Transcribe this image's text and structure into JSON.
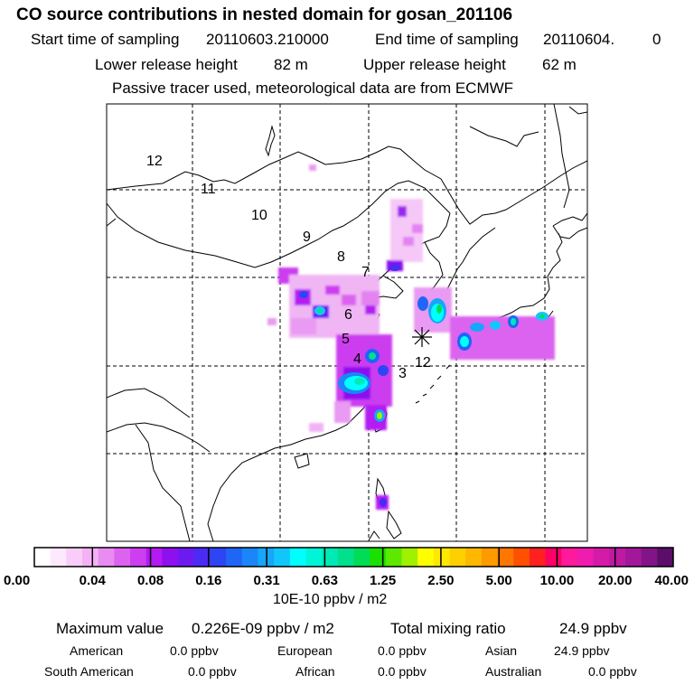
{
  "header": {
    "title": "CO  source contributions in nested domain for gosan_201106",
    "start_label": "Start time of sampling",
    "start_value": "20110603.210000",
    "end_label": "End time of sampling",
    "end_value": "20110604.",
    "end_value_tail": "0",
    "lower_label": "Lower release height",
    "lower_value": "82 m",
    "upper_label": "Upper release height",
    "upper_value": "62 m",
    "note": "Passive tracer used, meteorological data are from ECMWF"
  },
  "map": {
    "time_labels": [
      "12",
      "11",
      "10",
      "9",
      "8",
      "7",
      "6",
      "5",
      "4",
      "3",
      "12"
    ],
    "receptor": "gosan"
  },
  "colorbar": {
    "tick_labels": [
      "0.00",
      "0.04",
      "0.08",
      "0.16",
      "0.31",
      "0.63",
      "1.25",
      "2.50",
      "5.00",
      "10.00",
      "20.00",
      "40.00"
    ],
    "units": "10E-10 ppbv / m2",
    "colors": [
      "#ffffff",
      "#fde9fd",
      "#f9cdf9",
      "#f3b2f5",
      "#e98cf2",
      "#dc63ef",
      "#cc3ef0",
      "#b31af2",
      "#8e10ee",
      "#6b1bf0",
      "#4b2bf3",
      "#2e45f5",
      "#1f66f7",
      "#1a86f8",
      "#16a6fa",
      "#12c6fb",
      "#00ffff",
      "#00f5d8",
      "#00eab5",
      "#00e08d",
      "#00dd55",
      "#19e000",
      "#5ee800",
      "#a0f000",
      "#ffff00",
      "#ffe800",
      "#ffd000",
      "#ffb800",
      "#ff9a00",
      "#ff7700",
      "#ff5000",
      "#ff2020",
      "#ff0066",
      "#ff1a9b",
      "#ee1caf",
      "#d41aa8",
      "#bd1aa2",
      "#a3179a",
      "#821488",
      "#5a0e6a"
    ]
  },
  "stats": {
    "max_label": "Maximum value",
    "max_value": "0.226E-09 ppbv / m2",
    "total_label": "Total mixing ratio",
    "total_value": "24.9 ppbv",
    "american_label": "American",
    "american_value": "0.0 ppbv",
    "european_label": "European",
    "european_value": "0.0 ppbv",
    "asian_label": "Asian",
    "asian_value": "24.9 ppbv",
    "south_american_label": "South American",
    "south_american_value": "0.0 ppbv",
    "african_label": "African",
    "african_value": "0.0 ppbv",
    "australian_label": "Australian",
    "australian_value": "0.0 ppbv"
  }
}
